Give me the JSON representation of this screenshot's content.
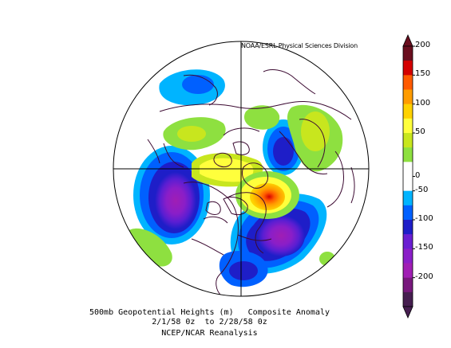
{
  "credit": "NOAA/ESRL Physical Sciences Division",
  "caption": {
    "line1": "500mb Geopotential Heights (m)   Composite Anomaly",
    "line2": "2/1/58 0z  to 2/28/58 0z",
    "line3": "NCEP/NCAR Reanalysis"
  },
  "colorbar": {
    "ticks": [
      "200",
      "150",
      "100",
      "50",
      "0",
      "-50",
      "-100",
      "-150",
      "-200"
    ],
    "colors": [
      "#6a0e1e",
      "#d40000",
      "#ff5a00",
      "#ff9c00",
      "#ffd200",
      "#ffff3c",
      "#c8e61e",
      "#8ee040",
      "#ffffff",
      "#ffffff",
      "#00b4ff",
      "#0060ff",
      "#1e1ec8",
      "#6a1ed2",
      "#8a1ec8",
      "#a01eb4",
      "#78187d",
      "#461e50"
    ]
  },
  "map": {
    "projection": "north-polar-stereographic",
    "line_color": "#3c0a32"
  }
}
